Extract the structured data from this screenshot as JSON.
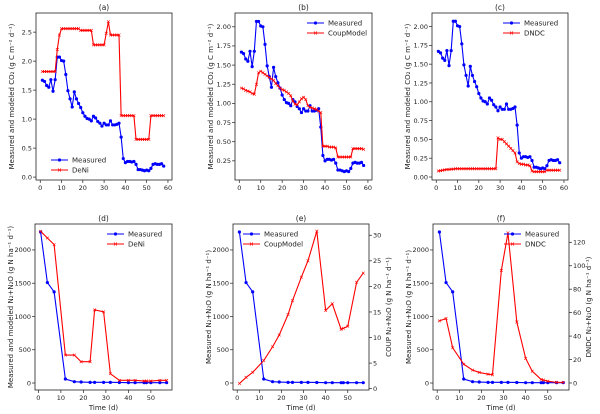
{
  "colors": {
    "measured": "#0000ff",
    "model": "#ff0000"
  },
  "chart_data": [
    {
      "type": "line",
      "title": "(a)",
      "xlabel": "",
      "ylabel": "Measured and modeled CO₂ (g C m⁻² d⁻¹)",
      "xlim": [
        -2,
        61.9
      ],
      "ylim": [
        -0.05,
        2.83
      ],
      "xticks": [
        0,
        10,
        20,
        30,
        40,
        50,
        60
      ],
      "yticks": [
        0.0,
        0.5,
        1.0,
        1.5,
        2.0,
        2.5
      ],
      "ydec": 1,
      "legend": "lower-left",
      "series": [
        {
          "name": "Measured",
          "role": "measured",
          "x": "co2_days",
          "y": "co2_measured"
        },
        {
          "name": "DeNi",
          "role": "model",
          "x": "co2_days",
          "y": [
            1.82,
            1.82,
            1.82,
            1.82,
            1.82,
            1.82,
            1.82,
            2.2,
            2.45,
            2.56,
            2.56,
            2.56,
            2.56,
            2.56,
            2.56,
            2.56,
            2.56,
            2.56,
            2.53,
            2.53,
            2.53,
            2.53,
            2.53,
            2.53,
            2.28,
            2.28,
            2.28,
            2.28,
            2.28,
            2.28,
            2.48,
            2.68,
            2.45,
            2.45,
            2.45,
            2.45,
            2.45,
            1.06,
            1.06,
            1.06,
            1.06,
            1.06,
            1.06,
            1.06,
            0.65,
            0.65,
            0.65,
            0.65,
            0.65,
            0.65,
            0.65,
            1.06,
            1.06,
            1.06,
            1.06,
            1.06,
            1.06,
            1.06
          ]
        }
      ]
    },
    {
      "type": "line",
      "title": "(b)",
      "xlabel": "",
      "ylabel": "Measured and modeled CO₂ (g C m⁻² d⁻¹)",
      "xlim": [
        -2,
        61.9
      ],
      "ylim": [
        0.0,
        2.18
      ],
      "xticks": [
        0,
        10,
        20,
        30,
        40,
        50,
        60
      ],
      "yticks": [
        0.25,
        0.5,
        0.75,
        1.0,
        1.25,
        1.5,
        1.75,
        2.0
      ],
      "ydec": 2,
      "legend": "upper-right",
      "series": [
        {
          "name": "Measured",
          "role": "measured",
          "x": "co2_days",
          "y": "co2_measured"
        },
        {
          "name": "CoupModel",
          "role": "model",
          "x": "co2_days",
          "y": [
            1.2,
            1.19,
            1.17,
            1.16,
            1.15,
            1.13,
            1.12,
            1.25,
            1.4,
            1.42,
            1.4,
            1.38,
            1.36,
            1.34,
            1.32,
            1.3,
            1.26,
            1.23,
            1.2,
            1.18,
            1.17,
            1.15,
            1.13,
            1.1,
            1.03,
            0.99,
            0.98,
            1.02,
            1.06,
            1.08,
            1.05,
            0.97,
            0.95,
            0.94,
            0.93,
            0.92,
            0.9,
            0.88,
            0.44,
            0.44,
            0.44,
            0.43,
            0.43,
            0.43,
            0.42,
            0.3,
            0.3,
            0.3,
            0.3,
            0.3,
            0.3,
            0.3,
            0.41,
            0.41,
            0.41,
            0.41,
            0.41,
            0.4
          ]
        }
      ]
    },
    {
      "type": "line",
      "title": "(c)",
      "xlabel": "",
      "ylabel": "Measured and modeled CO₂ (g C m⁻² d⁻¹)",
      "xlim": [
        -2,
        61.9
      ],
      "ylim": [
        -0.04,
        2.18
      ],
      "xticks": [
        0,
        10,
        20,
        30,
        40,
        50,
        60
      ],
      "yticks": [
        0.0,
        0.25,
        0.5,
        0.75,
        1.0,
        1.25,
        1.5,
        1.75,
        2.0
      ],
      "ydec": 2,
      "legend": "upper-right",
      "series": [
        {
          "name": "Measured",
          "role": "measured",
          "x": "co2_days",
          "y": "co2_measured"
        },
        {
          "name": "DNDC",
          "role": "model",
          "x": "co2_days",
          "y": [
            0.08,
            0.085,
            0.09,
            0.095,
            0.1,
            0.1,
            0.105,
            0.105,
            0.11,
            0.11,
            0.11,
            0.11,
            0.11,
            0.11,
            0.11,
            0.11,
            0.11,
            0.11,
            0.11,
            0.11,
            0.11,
            0.11,
            0.11,
            0.11,
            0.11,
            0.11,
            0.11,
            0.11,
            0.52,
            0.5,
            0.5,
            0.47,
            0.44,
            0.41,
            0.38,
            0.35,
            0.32,
            0.2,
            0.18,
            0.17,
            0.17,
            0.16,
            0.16,
            0.15,
            0.08,
            0.07,
            0.07,
            0.07,
            0.07,
            0.07,
            0.07,
            0.09,
            0.09,
            0.09,
            0.09,
            0.09,
            0.09,
            0.09
          ]
        }
      ]
    },
    {
      "type": "line",
      "title": "(d)",
      "xlabel": "Time (d)",
      "ylabel": "Measured and modeled N₂+N₂O (g N ha⁻¹ d⁻¹)",
      "xlim": [
        -1.5,
        59.4
      ],
      "ylim": [
        -105,
        2390
      ],
      "xticks": [
        0,
        10,
        20,
        30,
        40,
        50
      ],
      "yticks": [
        0,
        500,
        1000,
        1500,
        2000
      ],
      "ydec": 0,
      "legend": "upper-right",
      "series": [
        {
          "name": "Measured",
          "role": "measured",
          "x": "n_days",
          "y": "n_measured"
        },
        {
          "name": "DeNi",
          "role": "model",
          "x": "n_days",
          "y": [
            2280,
            2180,
            2080,
            420,
            420,
            320,
            320,
            1100,
            1070,
            140,
            40,
            40,
            40,
            30,
            30,
            30,
            40,
            40
          ]
        }
      ]
    },
    {
      "type": "line",
      "title": "(e)",
      "xlabel": "Time (d)",
      "ylabel": "Measured N₂+N₂O (g N ha⁻¹ d⁻¹)",
      "y2label": "COUP N₂+N₂O (g N ha⁻¹ d⁻¹)",
      "xlim": [
        -1.9,
        59.6
      ],
      "ylim": [
        -105,
        2390
      ],
      "y2lim": [
        -0.26,
        32.2
      ],
      "xticks": [
        0,
        10,
        20,
        30,
        40,
        50
      ],
      "yticks": [
        0,
        500,
        1000,
        1500,
        2000
      ],
      "ydec": 0,
      "y2ticks": [
        0,
        5,
        10,
        15,
        20,
        25,
        30
      ],
      "legend": "upper-left",
      "series": [
        {
          "name": "Measured",
          "role": "measured",
          "x": "n_days",
          "y": "n_measured"
        },
        {
          "name": "CoupModel",
          "role": "model",
          "axis": "right",
          "x": "n_days",
          "y": [
            1,
            2.2,
            3.2,
            5.5,
            8.2,
            10.5,
            14.5,
            17.2,
            21.8,
            25,
            30.8,
            15.3,
            16.6,
            11.6,
            11.8,
            12.2,
            20.8,
            22.6
          ]
        }
      ]
    },
    {
      "type": "line",
      "title": "(f)",
      "xlabel": "Time (d)",
      "ylabel": "Measured N₂+N₂O (g N ha⁻¹ d⁻¹)",
      "y2label": "DNDC N₂+N₂O (g N ha⁻¹ d⁻¹)",
      "xlim": [
        -1.9,
        59.6
      ],
      "ylim": [
        -105,
        2390
      ],
      "y2lim": [
        -6,
        135.6
      ],
      "xticks": [
        0,
        10,
        20,
        30,
        40,
        50
      ],
      "yticks": [
        0,
        500,
        1000,
        1500,
        2000
      ],
      "ydec": 0,
      "y2ticks": [
        0,
        20,
        40,
        60,
        80,
        100,
        120
      ],
      "legend": "upper-right",
      "series": [
        {
          "name": "Measured",
          "role": "measured",
          "x": "n_days",
          "y": "n_measured"
        },
        {
          "name": "DNDC",
          "role": "model",
          "axis": "right",
          "x": "n_days",
          "y": [
            53,
            55,
            30,
            16,
            11,
            9,
            7.5,
            7,
            96,
            128,
            52,
            21,
            10,
            3,
            2.5,
            1.5,
            0.5,
            0.5
          ]
        }
      ]
    }
  ],
  "shared": {
    "co2_days": [
      1,
      2,
      3,
      4,
      5,
      6,
      7,
      8,
      9,
      10,
      11,
      12,
      13,
      14,
      15,
      16,
      17,
      18,
      19,
      20,
      21,
      22,
      23,
      24,
      25,
      26,
      27,
      28,
      29,
      30,
      31,
      32,
      33,
      34,
      35,
      36,
      37,
      38,
      39,
      40,
      41,
      42,
      43,
      44,
      45,
      46,
      47,
      48,
      49,
      50,
      51,
      52,
      53,
      54,
      55,
      56,
      57,
      58
    ],
    "co2_measured": [
      1.67,
      1.65,
      1.58,
      1.55,
      1.68,
      1.48,
      1.68,
      2.07,
      2.07,
      2.01,
      2.0,
      1.77,
      1.49,
      1.35,
      1.21,
      1.47,
      1.35,
      1.27,
      1.2,
      1.11,
      1.05,
      1.01,
      1.0,
      0.97,
      1.05,
      1.02,
      0.96,
      0.93,
      0.88,
      0.93,
      0.9,
      0.9,
      0.97,
      0.9,
      0.9,
      0.91,
      0.93,
      0.69,
      0.32,
      0.25,
      0.27,
      0.27,
      0.26,
      0.27,
      0.22,
      0.13,
      0.13,
      0.12,
      0.11,
      0.12,
      0.11,
      0.15,
      0.22,
      0.23,
      0.22,
      0.22,
      0.23,
      0.19
    ],
    "n_days": [
      1,
      4,
      7,
      12,
      16,
      19,
      23,
      25,
      29,
      32,
      36,
      40,
      43,
      47,
      48,
      50,
      54,
      57
    ],
    "n_measured": [
      2270,
      1510,
      1370,
      60,
      20,
      15,
      10,
      10,
      10,
      10,
      8,
      5,
      5,
      5,
      5,
      5,
      5,
      5
    ]
  }
}
